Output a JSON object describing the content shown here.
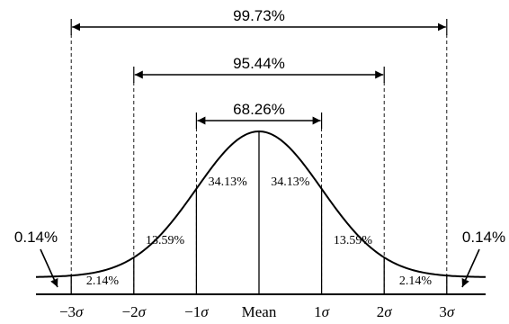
{
  "ranges": [
    {
      "label": "99.73%",
      "from": -3,
      "to": 3
    },
    {
      "label": "95.44%",
      "from": -2,
      "to": 2
    },
    {
      "label": "68.26%",
      "from": -1,
      "to": 1
    }
  ],
  "regions": [
    {
      "label": "2.14%",
      "sigma_from": -3,
      "sigma_to": -2
    },
    {
      "label": "13.59%",
      "sigma_from": -2,
      "sigma_to": -1
    },
    {
      "label": "34.13%",
      "sigma_from": -1,
      "sigma_to": 0
    },
    {
      "label": "34.13%",
      "sigma_from": 0,
      "sigma_to": 1
    },
    {
      "label": "13.59%",
      "sigma_from": 1,
      "sigma_to": 2
    },
    {
      "label": "2.14%",
      "sigma_from": 2,
      "sigma_to": 3
    }
  ],
  "tails": [
    {
      "label": "0.14%",
      "side": "left"
    },
    {
      "label": "0.14%",
      "side": "right"
    }
  ],
  "axis_labels": [
    {
      "sigma": -3,
      "prefix": "−3",
      "symbol": "σ"
    },
    {
      "sigma": -2,
      "prefix": "−2",
      "symbol": "σ"
    },
    {
      "sigma": -1,
      "prefix": "−1",
      "symbol": "σ"
    },
    {
      "sigma": 0,
      "prefix": "Mean",
      "symbol": ""
    },
    {
      "sigma": 1,
      "prefix": "1",
      "symbol": "σ"
    },
    {
      "sigma": 2,
      "prefix": "2",
      "symbol": "σ"
    },
    {
      "sigma": 3,
      "prefix": "3",
      "symbol": "σ"
    }
  ]
}
